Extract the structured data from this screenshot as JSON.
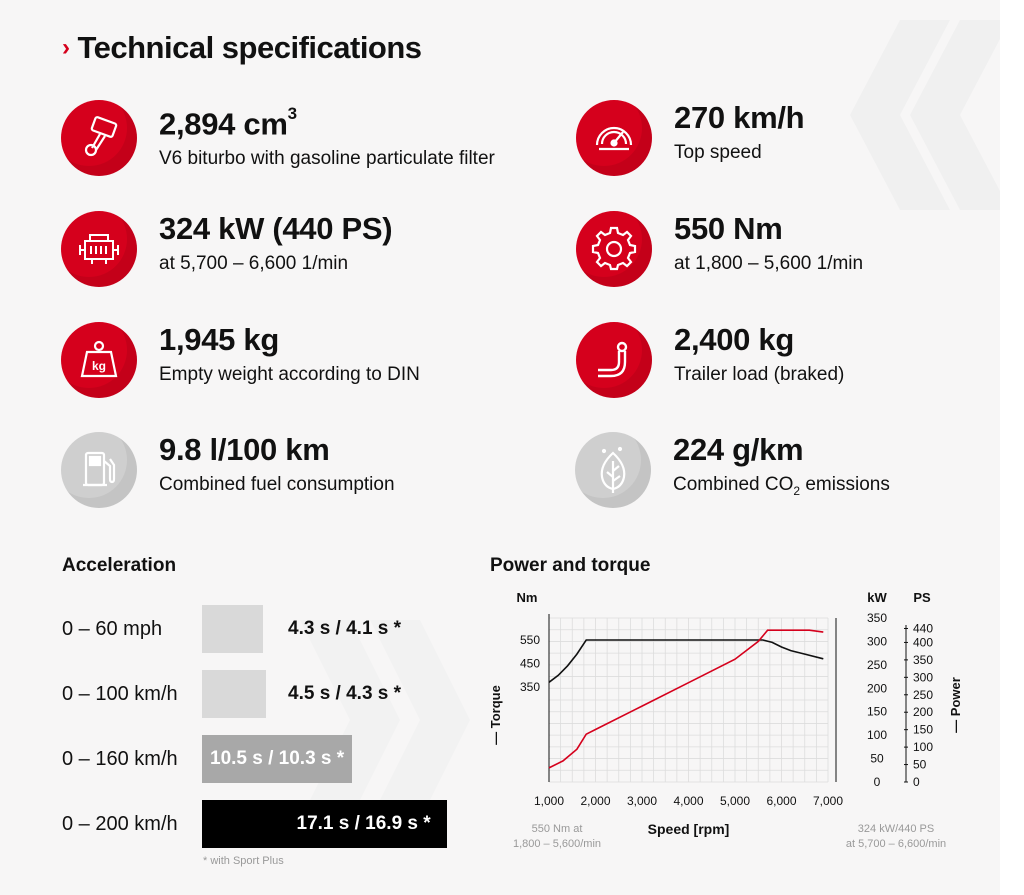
{
  "title": "Technical specifications",
  "specs": [
    {
      "value": "2,894 cm",
      "sup": "3",
      "sub": "V6 biturbo with gasoline particulate filter",
      "icon": "piston-icon"
    },
    {
      "value": "270 km/h",
      "sub": "Top speed",
      "icon": "speedometer-icon"
    },
    {
      "value": "324 kW (440 PS)",
      "sub": "at 5,700 – 6,600 1/min",
      "icon": "engine-icon"
    },
    {
      "value": "550 Nm",
      "sub": "at 1,800 – 5,600 1/min",
      "icon": "gear-icon"
    },
    {
      "value": "1,945 kg",
      "sub": "Empty weight according to DIN",
      "icon": "weight-icon"
    },
    {
      "value": "2,400 kg",
      "sub": "Trailer load (braked)",
      "icon": "tow-hook-icon"
    },
    {
      "value": "9.8 l/100 km",
      "sub": "Combined fuel consumption",
      "icon": "fuel-pump-icon"
    },
    {
      "value": "224 g/km",
      "sub_pre": "Combined CO",
      "sub_sub": "2",
      "sub_post": " emissions",
      "icon": "leaf-icon"
    }
  ],
  "acceleration": {
    "title": "Acceleration",
    "rows": [
      {
        "label": "0 – 60 mph",
        "value": "4.3 s / 4.1 s *",
        "seconds": 4.3,
        "color": "#d9d9d9",
        "text_color": "#111111"
      },
      {
        "label": "0 – 100 km/h",
        "value": "4.5 s / 4.3 s *",
        "seconds": 4.5,
        "color": "#d9d9d9",
        "text_color": "#111111"
      },
      {
        "label": "0 – 160 km/h",
        "value": "10.5 s / 10.3 s *",
        "seconds": 10.5,
        "color": "#a8a8a8",
        "text_color": "#ffffff"
      },
      {
        "label": "0 – 200 km/h",
        "value": "17.1 s / 16.9 s *",
        "seconds": 17.1,
        "color": "#000000",
        "text_color": "#ffffff"
      }
    ],
    "footnote": "* with Sport Plus"
  },
  "chart_data": {
    "type": "line",
    "title": "Power and torque",
    "xlabel": "Speed [rpm]",
    "xlim": [
      1000,
      7000
    ],
    "x_ticks": [
      "1,000",
      "2,000",
      "3,000",
      "4,000",
      "5,000",
      "6,000",
      "7,000"
    ],
    "left_unit": "Nm",
    "left_label": "— Torque",
    "left_ticks": [
      "550",
      "450",
      "350"
    ],
    "kw_unit": "kW",
    "kw_ticks": [
      "350",
      "300",
      "250",
      "200",
      "150",
      "100",
      "50",
      "0"
    ],
    "ps_unit": "PS",
    "ps_ticks": [
      "440",
      "400",
      "350",
      "300",
      "250",
      "200",
      "150",
      "100",
      "50",
      "0"
    ],
    "right_label": "— Power",
    "ylim_kw": [
      0,
      350
    ],
    "series": [
      {
        "name": "Torque",
        "color": "#111111",
        "axis": "nm",
        "x": [
          1000,
          1200,
          1400,
          1600,
          1800,
          2000,
          3000,
          4000,
          5000,
          5600,
          5800,
          6000,
          6200,
          6500,
          6900
        ],
        "y": [
          370,
          400,
          440,
          490,
          550,
          550,
          550,
          550,
          550,
          550,
          540,
          520,
          505,
          490,
          470
        ]
      },
      {
        "name": "Power",
        "color": "#d5001c",
        "axis": "kw",
        "x": [
          1000,
          1300,
          1600,
          1800,
          2000,
          3000,
          4000,
          5000,
          5500,
          5700,
          6000,
          6600,
          6900
        ],
        "y": [
          30,
          45,
          70,
          102,
          112,
          162,
          212,
          262,
          300,
          324,
          324,
          324,
          320
        ]
      }
    ],
    "note_left": [
      "550 Nm at",
      "1,800 – 5,600/min"
    ],
    "note_right": [
      "324 kW/440 PS",
      "at 5,700 – 6,600/min"
    ]
  }
}
